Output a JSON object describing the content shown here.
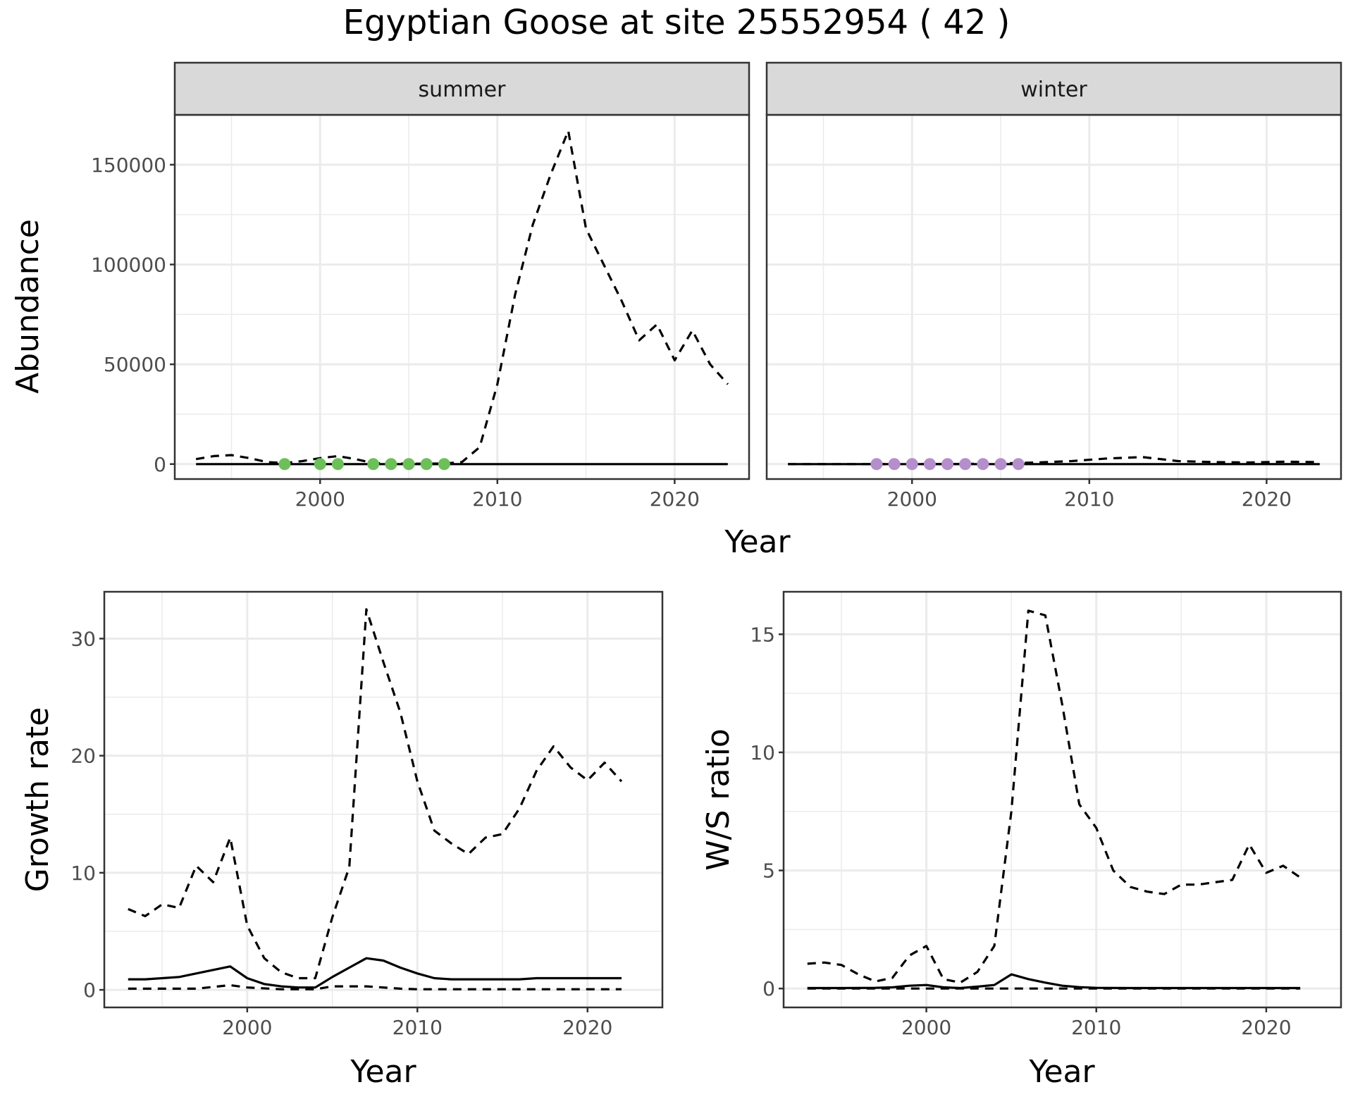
{
  "title": "Egyptian Goose at site 25552954 ( 42 )",
  "chart_data": [
    {
      "id": "abundance",
      "type": "line",
      "facets": [
        "summer",
        "winter"
      ],
      "xlabel": "Year",
      "ylabel": "Abundance",
      "xlim": [
        1991.8,
        2024.2
      ],
      "ylim": [
        -7500,
        175000
      ],
      "x_ticks": [
        2000,
        2010,
        2020
      ],
      "y_ticks": [
        0,
        50000,
        100000,
        150000
      ],
      "y_tick_labels": [
        "0",
        "50000",
        "100000",
        "150000"
      ],
      "grid": true,
      "point_colors": {
        "summer": "#6dbf5a",
        "winter": "#b48fcb"
      },
      "panels": [
        {
          "facet": "summer",
          "series": [
            {
              "style": "solid",
              "x": [
                1993,
                1998,
                2003,
                2008,
                2013,
                2018,
                2023
              ],
              "y": [
                0,
                0,
                0,
                0,
                0,
                0,
                0
              ]
            },
            {
              "style": "dashed",
              "x": [
                1993,
                1994,
                1995,
                1996,
                1997,
                1998,
                1999,
                2000,
                2001,
                2002,
                2003,
                2004,
                2005,
                2006,
                2007,
                2008,
                2009,
                2010,
                2011,
                2012,
                2013,
                2014,
                2015,
                2016,
                2017,
                2018,
                2019,
                2020,
                2021,
                2022,
                2023
              ],
              "y": [
                2500,
                4000,
                4500,
                3000,
                1000,
                500,
                1500,
                3000,
                4000,
                2500,
                500,
                300,
                200,
                200,
                300,
                1000,
                8500,
                40000,
                85000,
                120000,
                145000,
                167000,
                118000,
                100000,
                82000,
                62000,
                70000,
                52000,
                67000,
                50000,
                40000
              ]
            }
          ],
          "points": {
            "x": [
              1998,
              2000,
              2001,
              2003,
              2004,
              2005,
              2006,
              2007
            ],
            "y": [
              0,
              0,
              0,
              0,
              0,
              0,
              0,
              0
            ]
          }
        },
        {
          "facet": "winter",
          "series": [
            {
              "style": "solid",
              "x": [
                1993,
                1998,
                2003,
                2008,
                2013,
                2018,
                2023
              ],
              "y": [
                0,
                0,
                0,
                0,
                0,
                0,
                0
              ]
            },
            {
              "style": "dashed",
              "x": [
                1993,
                1995,
                1997,
                1999,
                2001,
                2003,
                2005,
                2007,
                2009,
                2011,
                2013,
                2015,
                2017,
                2019,
                2021,
                2023
              ],
              "y": [
                0,
                0,
                0,
                0,
                0,
                100,
                300,
                800,
                1500,
                2800,
                3500,
                1500,
                1000,
                800,
                1200,
                1000
              ]
            }
          ],
          "points": {
            "x": [
              1998,
              1999,
              2000,
              2001,
              2002,
              2003,
              2004,
              2005,
              2006
            ],
            "y": [
              0,
              0,
              0,
              0,
              0,
              0,
              0,
              0,
              0
            ]
          }
        }
      ]
    },
    {
      "id": "growth",
      "type": "line",
      "xlabel": "Year",
      "ylabel": "Growth rate",
      "xlim": [
        1991.6,
        2024.4
      ],
      "ylim": [
        -1.5,
        34
      ],
      "x_ticks": [
        2000,
        2010,
        2020
      ],
      "y_ticks": [
        0,
        10,
        20,
        30
      ],
      "y_tick_labels": [
        "0",
        "10",
        "20",
        "30"
      ],
      "grid": true,
      "series": [
        {
          "style": "solid",
          "x": [
            1993,
            1994,
            1995,
            1996,
            1997,
            1998,
            1999,
            2000,
            2001,
            2002,
            2003,
            2004,
            2005,
            2006,
            2007,
            2008,
            2009,
            2010,
            2011,
            2012,
            2013,
            2014,
            2015,
            2016,
            2017,
            2018,
            2019,
            2020,
            2021,
            2022
          ],
          "y": [
            0.9,
            0.9,
            1.0,
            1.1,
            1.4,
            1.7,
            2.0,
            1.0,
            0.5,
            0.3,
            0.2,
            0.2,
            1.1,
            1.9,
            2.7,
            2.5,
            1.9,
            1.4,
            1.0,
            0.9,
            0.9,
            0.9,
            0.9,
            0.9,
            1.0,
            1.0,
            1.0,
            1.0,
            1.0,
            1.0
          ]
        },
        {
          "style": "dashed",
          "x": [
            1993,
            1994,
            1995,
            1996,
            1997,
            1998,
            1999,
            2000,
            2001,
            2002,
            2003,
            2004,
            2005,
            2006,
            2007,
            2008,
            2009,
            2010,
            2011,
            2012,
            2013,
            2014,
            2015,
            2016,
            2017,
            2018,
            2019,
            2020,
            2021,
            2022
          ],
          "y": [
            6.9,
            6.3,
            7.3,
            7.0,
            10.6,
            9.2,
            13.0,
            5.5,
            2.7,
            1.5,
            1.0,
            1.0,
            6.2,
            10.5,
            32.5,
            28.0,
            23.7,
            17.8,
            13.6,
            12.5,
            11.6,
            13.0,
            13.3,
            15.5,
            18.7,
            20.8,
            19.0,
            17.9,
            19.4,
            17.8
          ]
        },
        {
          "style": "dashed",
          "x": [
            1993,
            1995,
            1997,
            1999,
            2000,
            2002,
            2004,
            2005,
            2007,
            2009,
            2010,
            2013,
            2016,
            2019,
            2022
          ],
          "y": [
            0.1,
            0.1,
            0.1,
            0.4,
            0.2,
            0.05,
            0.05,
            0.3,
            0.3,
            0.1,
            0.05,
            0.05,
            0.05,
            0.05,
            0.05
          ]
        }
      ]
    },
    {
      "id": "ws_ratio",
      "type": "line",
      "xlabel": "Year",
      "ylabel": "W/S ratio",
      "xlim": [
        1991.6,
        2024.4
      ],
      "ylim": [
        -0.8,
        16.8
      ],
      "x_ticks": [
        2000,
        2010,
        2020
      ],
      "y_ticks": [
        0,
        5,
        10,
        15
      ],
      "y_tick_labels": [
        "0",
        "5",
        "10",
        "15"
      ],
      "grid": true,
      "series": [
        {
          "style": "solid",
          "x": [
            1993,
            1995,
            1997,
            1998,
            1999,
            2000,
            2001,
            2002,
            2003,
            2004,
            2005,
            2006,
            2007,
            2008,
            2009,
            2010,
            2012,
            2015,
            2018,
            2020,
            2022
          ],
          "y": [
            0.02,
            0.02,
            0.03,
            0.05,
            0.12,
            0.15,
            0.05,
            0.02,
            0.08,
            0.15,
            0.6,
            0.4,
            0.25,
            0.12,
            0.06,
            0.03,
            0.02,
            0.02,
            0.02,
            0.02,
            0.02
          ]
        },
        {
          "style": "dashed",
          "x": [
            1993,
            1994,
            1995,
            1996,
            1997,
            1998,
            1999,
            2000,
            2001,
            2002,
            2003,
            2004,
            2005,
            2006,
            2007,
            2008,
            2009,
            2010,
            2011,
            2012,
            2013,
            2014,
            2015,
            2016,
            2017,
            2018,
            2019,
            2020,
            2021,
            2022
          ],
          "y": [
            1.05,
            1.1,
            1.0,
            0.6,
            0.3,
            0.45,
            1.4,
            1.8,
            0.4,
            0.25,
            0.7,
            1.8,
            7.5,
            16.0,
            15.8,
            12.0,
            7.8,
            6.8,
            5.0,
            4.3,
            4.1,
            4.0,
            4.4,
            4.4,
            4.5,
            4.6,
            6.1,
            4.9,
            5.2,
            4.7
          ]
        },
        {
          "style": "dashed",
          "x": [
            1993,
            2000,
            2005,
            2010,
            2015,
            2022
          ],
          "y": [
            0,
            0,
            0,
            0,
            0,
            0
          ]
        }
      ]
    }
  ]
}
